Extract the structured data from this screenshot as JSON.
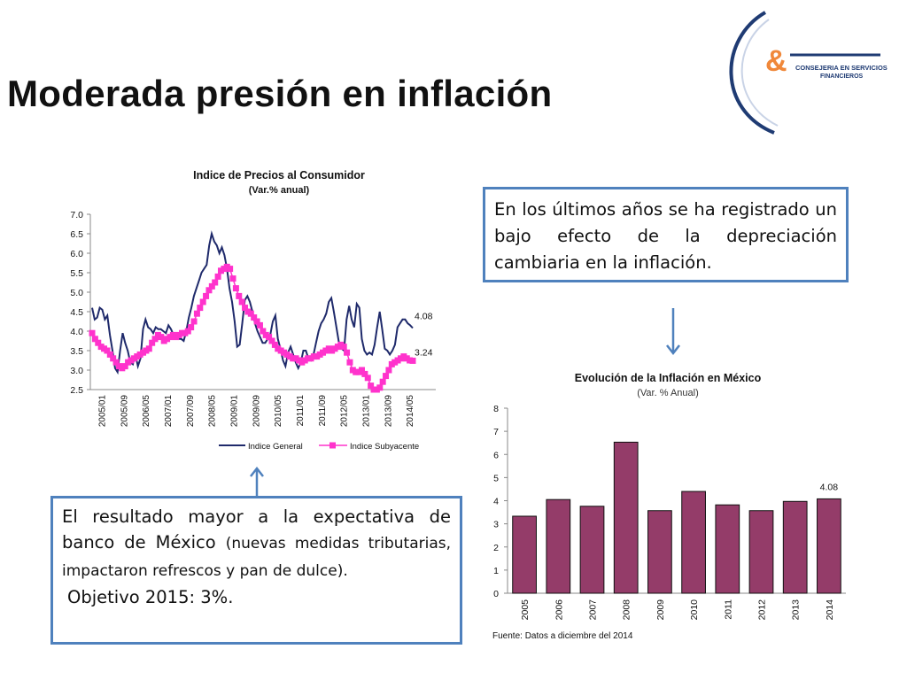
{
  "slide": {
    "title": "Moderada presión en inflación",
    "box_top_text": "En los últimos años se ha registrado un bajo efecto de la depreciación cambiaria en la inflación.",
    "box_bottom_main": "El resultado mayor a la expectativa de banco de México",
    "box_bottom_small": "(nuevas medidas tributarias, impactaron refrescos y pan de dulce).",
    "box_bottom_goal": "Objetivo 2015: 3%.",
    "logo_text_line1": "CONSEJERIA EN SERVICIOS",
    "logo_text_line2": "FINANCIEROS",
    "logo_symbol": "&"
  },
  "colors": {
    "general": "#1f2a6b",
    "subyacente": "#ff33cc",
    "bar": "#943c69",
    "box_border": "#4f81bd",
    "logo_orange": "#f0883a",
    "logo_navy": "#1f3b73"
  },
  "chart_data": [
    {
      "type": "line",
      "title": "Indice de Precios al Consumidor",
      "subtitle": "(Var.% anual)",
      "ylim": [
        2.5,
        7.0
      ],
      "yticks": [
        "7.0",
        "6.5",
        "6.0",
        "5.5",
        "5.0",
        "4.5",
        "4.0",
        "3.5",
        "3.0",
        "2.5"
      ],
      "x_tick_labels": [
        "2005/01",
        "2005/09",
        "2006/05",
        "2007/01",
        "2007/09",
        "2008/05",
        "2009/01",
        "2009/09",
        "2010/05",
        "2011/01",
        "2011/09",
        "2012/05",
        "2013/01",
        "2013/09",
        "2014/05"
      ],
      "legend_position": "bottom",
      "last_value_labels": [
        "4.08",
        "3.24"
      ],
      "series": [
        {
          "name": "Indice General",
          "marker": "none",
          "values": [
            4.6,
            4.3,
            4.35,
            4.6,
            4.55,
            4.3,
            4.4,
            3.9,
            3.5,
            3.05,
            2.95,
            3.5,
            3.95,
            3.7,
            3.5,
            3.2,
            3.15,
            3.4,
            3.1,
            3.3,
            4.05,
            4.3,
            4.1,
            4.05,
            3.95,
            4.1,
            4.05,
            4.05,
            4.0,
            3.95,
            4.15,
            4.05,
            3.9,
            3.85,
            3.8,
            3.8,
            3.75,
            4.0,
            4.35,
            4.6,
            4.9,
            5.1,
            5.3,
            5.5,
            5.6,
            5.7,
            6.2,
            6.5,
            6.3,
            6.2,
            6.0,
            6.15,
            5.95,
            5.6,
            5.1,
            4.75,
            4.25,
            3.6,
            3.65,
            4.2,
            4.8,
            4.9,
            4.75,
            4.5,
            4.2,
            4.0,
            3.85,
            3.7,
            3.7,
            3.8,
            3.9,
            4.25,
            4.4,
            3.8,
            3.55,
            3.25,
            3.1,
            3.45,
            3.6,
            3.4,
            3.2,
            3.05,
            3.2,
            3.5,
            3.5,
            3.3,
            3.25,
            3.4,
            3.7,
            4.0,
            4.2,
            4.3,
            4.45,
            4.75,
            4.85,
            4.5,
            4.1,
            3.7,
            3.55,
            3.5,
            4.3,
            4.65,
            4.3,
            4.1,
            4.7,
            4.6,
            3.8,
            3.5,
            3.4,
            3.45,
            3.4,
            3.65,
            4.1,
            4.5,
            4.05,
            3.55,
            3.5,
            3.4,
            3.5,
            3.65,
            4.1,
            4.2,
            4.3,
            4.3,
            4.2,
            4.15,
            4.08
          ]
        },
        {
          "name": "Indice Subyacente",
          "marker": "square",
          "values": [
            3.95,
            3.8,
            3.7,
            3.6,
            3.55,
            3.5,
            3.4,
            3.3,
            3.2,
            3.1,
            3.05,
            3.1,
            3.2,
            3.25,
            3.3,
            3.35,
            3.4,
            3.45,
            3.5,
            3.55,
            3.7,
            3.8,
            3.9,
            3.85,
            3.75,
            3.8,
            3.85,
            3.9,
            3.85,
            3.9,
            3.95,
            3.95,
            4.0,
            4.1,
            4.25,
            4.45,
            4.6,
            4.75,
            4.9,
            5.05,
            5.15,
            5.25,
            5.4,
            5.55,
            5.6,
            5.65,
            5.6,
            5.35,
            5.1,
            4.9,
            4.75,
            4.6,
            4.5,
            4.45,
            4.35,
            4.25,
            4.15,
            4.0,
            3.9,
            3.85,
            3.75,
            3.65,
            3.55,
            3.5,
            3.45,
            3.4,
            3.35,
            3.3,
            3.3,
            3.25,
            3.2,
            3.25,
            3.3,
            3.3,
            3.35,
            3.35,
            3.4,
            3.45,
            3.5,
            3.55,
            3.5,
            3.55,
            3.6,
            3.65,
            3.6,
            3.45,
            3.2,
            3.0,
            2.95,
            2.95,
            3.0,
            2.9,
            2.8,
            2.6,
            2.5,
            2.5,
            2.55,
            2.7,
            2.85,
            3.0,
            3.15,
            3.2,
            3.25,
            3.3,
            3.35,
            3.3,
            3.25,
            3.24
          ]
        }
      ]
    },
    {
      "type": "bar",
      "title": "Evolución de la Inflación en México",
      "subtitle": "(Var. % Anual)",
      "categories": [
        "2005",
        "2006",
        "2007",
        "2008",
        "2009",
        "2010",
        "2011",
        "2012",
        "2013",
        "2014"
      ],
      "values": [
        3.33,
        4.05,
        3.76,
        6.53,
        3.57,
        4.4,
        3.82,
        3.57,
        3.97,
        4.08
      ],
      "ylim": [
        0,
        8
      ],
      "yticks": [
        "8",
        "7",
        "6",
        "5",
        "4",
        "3",
        "2",
        "1",
        "0"
      ],
      "data_label_last": "4.08",
      "source": "Fuente: Datos a diciembre del 2014"
    }
  ]
}
